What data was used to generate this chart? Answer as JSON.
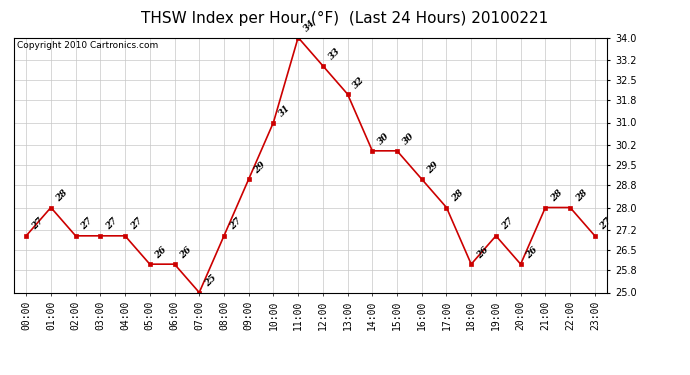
{
  "title": "THSW Index per Hour (°F)  (Last 24 Hours) 20100221",
  "copyright": "Copyright 2010 Cartronics.com",
  "hours": [
    "00:00",
    "01:00",
    "02:00",
    "03:00",
    "04:00",
    "05:00",
    "06:00",
    "07:00",
    "08:00",
    "09:00",
    "10:00",
    "11:00",
    "12:00",
    "13:00",
    "14:00",
    "15:00",
    "16:00",
    "17:00",
    "18:00",
    "19:00",
    "20:00",
    "21:00",
    "22:00",
    "23:00"
  ],
  "values": [
    27,
    28,
    27,
    27,
    27,
    26,
    26,
    25,
    27,
    29,
    31,
    34,
    33,
    32,
    30,
    30,
    29,
    28,
    26,
    27,
    26,
    28,
    28,
    27
  ],
  "line_color": "#cc0000",
  "marker_color": "#cc0000",
  "background_color": "#ffffff",
  "grid_color": "#c8c8c8",
  "ylim_min": 25.0,
  "ylim_max": 34.0,
  "yticks": [
    25.0,
    25.8,
    26.5,
    27.2,
    28.0,
    28.8,
    29.5,
    30.2,
    31.0,
    31.8,
    32.5,
    33.2,
    34.0
  ],
  "title_fontsize": 11,
  "label_fontsize": 6.5,
  "copyright_fontsize": 6.5,
  "tick_fontsize": 7
}
